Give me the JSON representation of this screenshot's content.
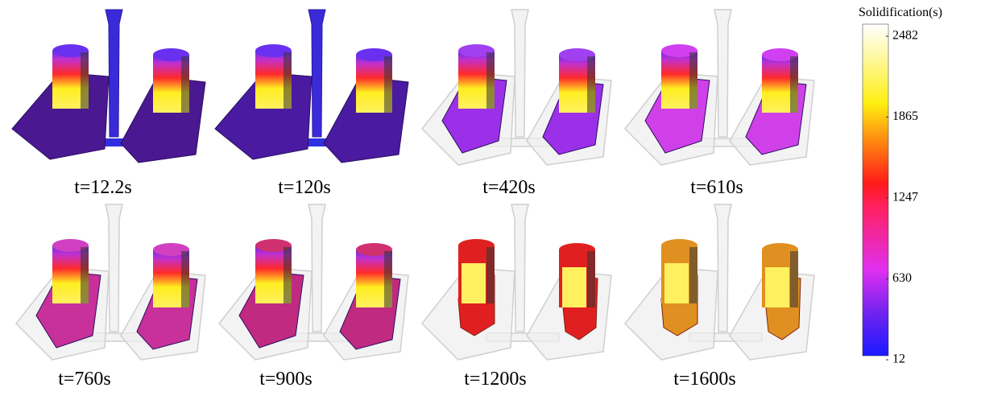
{
  "panels": [
    {
      "label": "t=12.2s"
    },
    {
      "label": "t=120s"
    },
    {
      "label": "t=420s"
    },
    {
      "label": "t=610s"
    },
    {
      "label": "t=760s"
    },
    {
      "label": "t=900s"
    },
    {
      "label": "t=1200s"
    },
    {
      "label": "t=1600s"
    }
  ],
  "colorbar": {
    "title": "Solidification(s)",
    "range": [
      12,
      2482
    ],
    "ticks": [
      12,
      630,
      1247,
      1865,
      2482
    ]
  }
}
